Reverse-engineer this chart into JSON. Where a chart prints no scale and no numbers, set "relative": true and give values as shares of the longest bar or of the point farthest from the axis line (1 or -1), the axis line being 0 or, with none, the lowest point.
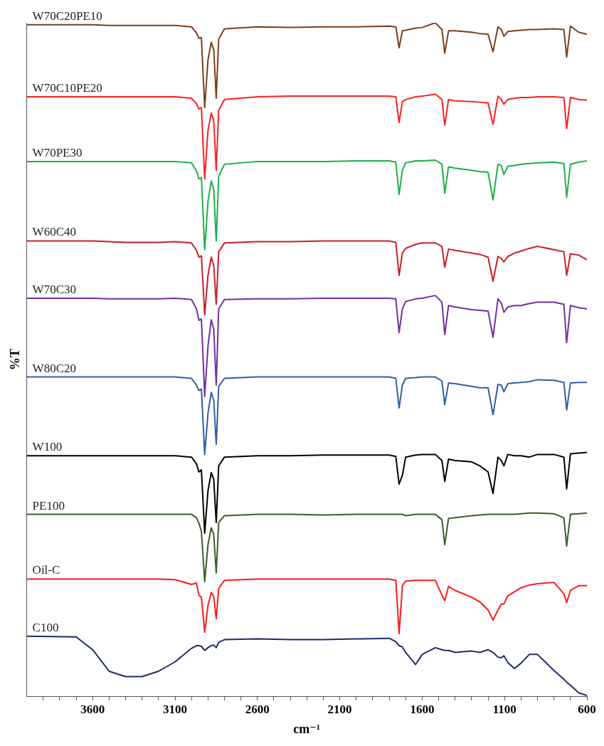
{
  "chart_data": {
    "type": "line",
    "xlabel": "cm⁻¹",
    "ylabel": "%T",
    "relative": true,
    "grid": false,
    "legend": false,
    "marker": "none",
    "line_style": "solid",
    "xlim": [
      4000,
      600
    ],
    "xticks": [
      {
        "value": 3900,
        "label": null
      },
      {
        "value": 3800,
        "label": null
      },
      {
        "value": 3700,
        "label": null
      },
      3600,
      {
        "value": 3500,
        "label": null
      },
      {
        "value": 3400,
        "label": null
      },
      {
        "value": 3300,
        "label": null
      },
      {
        "value": 3200,
        "label": null
      },
      3100,
      {
        "value": 3000,
        "label": null
      },
      {
        "value": 2900,
        "label": null
      },
      {
        "value": 2800,
        "label": null
      },
      {
        "value": 2700,
        "label": null
      },
      2600,
      {
        "value": 2500,
        "label": null
      },
      {
        "value": 2400,
        "label": null
      },
      {
        "value": 2300,
        "label": null
      },
      {
        "value": 2200,
        "label": null
      },
      2100,
      {
        "value": 2000,
        "label": null
      },
      {
        "value": 1900,
        "label": null
      },
      {
        "value": 1800,
        "label": null
      },
      {
        "value": 1700,
        "label": null
      },
      1600,
      {
        "value": 1500,
        "label": null
      },
      {
        "value": 1400,
        "label": null
      },
      {
        "value": 1300,
        "label": null
      },
      {
        "value": 1200,
        "label": null
      },
      1100,
      {
        "value": 1000,
        "label": null
      },
      {
        "value": 900,
        "label": null
      },
      {
        "value": 800,
        "label": null
      },
      {
        "value": 700,
        "label": null
      },
      600
    ],
    "x": [
      4000,
      3700,
      3600,
      3500,
      3400,
      3300,
      3200,
      3100,
      3000,
      2970,
      2955,
      2940,
      2920,
      2900,
      2880,
      2865,
      2850,
      2835,
      2800,
      2600,
      2400,
      2200,
      2000,
      1800,
      1760,
      1740,
      1720,
      1700,
      1640,
      1600,
      1520,
      1480,
      1463,
      1440,
      1400,
      1300,
      1250,
      1200,
      1170,
      1140,
      1120,
      1104,
      1080,
      1040,
      1000,
      950,
      900,
      800,
      740,
      723,
      700,
      650,
      600
    ],
    "series": [
      {
        "name": "W70C20PE10",
        "color": "#7b3f1a",
        "values": [
          0.997,
          0.997,
          0.997,
          0.996,
          0.996,
          0.996,
          0.996,
          0.996,
          0.994,
          0.985,
          0.977,
          0.978,
          0.874,
          0.945,
          0.971,
          0.96,
          0.888,
          0.976,
          0.991,
          0.994,
          0.993,
          0.994,
          0.994,
          0.995,
          0.994,
          0.963,
          0.988,
          0.989,
          0.992,
          0.993,
          1.0,
          0.99,
          0.955,
          0.988,
          0.988,
          0.986,
          0.984,
          0.983,
          0.957,
          0.994,
          0.99,
          0.98,
          0.987,
          0.988,
          0.989,
          0.99,
          0.99,
          0.991,
          0.99,
          0.949,
          0.995,
          0.986,
          0.983
        ]
      },
      {
        "name": "W70C10PE20",
        "color": "#ff2020",
        "values": [
          0.89,
          0.89,
          0.89,
          0.89,
          0.89,
          0.89,
          0.89,
          0.89,
          0.888,
          0.88,
          0.872,
          0.874,
          0.768,
          0.84,
          0.866,
          0.855,
          0.781,
          0.87,
          0.886,
          0.89,
          0.891,
          0.891,
          0.891,
          0.891,
          0.89,
          0.852,
          0.883,
          0.886,
          0.89,
          0.891,
          0.894,
          0.886,
          0.848,
          0.886,
          0.884,
          0.883,
          0.882,
          0.881,
          0.849,
          0.891,
          0.886,
          0.879,
          0.886,
          0.888,
          0.889,
          0.889,
          0.89,
          0.89,
          0.889,
          0.843,
          0.889,
          0.886,
          0.885
        ]
      },
      {
        "name": "W70PE30",
        "color": "#1db04b",
        "values": [
          0.794,
          0.794,
          0.794,
          0.794,
          0.794,
          0.794,
          0.794,
          0.794,
          0.792,
          0.78,
          0.768,
          0.77,
          0.663,
          0.735,
          0.765,
          0.752,
          0.676,
          0.772,
          0.79,
          0.794,
          0.794,
          0.794,
          0.795,
          0.795,
          0.793,
          0.745,
          0.781,
          0.792,
          0.795,
          0.795,
          0.796,
          0.79,
          0.747,
          0.786,
          0.784,
          0.781,
          0.779,
          0.778,
          0.737,
          0.79,
          0.788,
          0.775,
          0.787,
          0.788,
          0.79,
          0.791,
          0.792,
          0.793,
          0.791,
          0.741,
          0.79,
          0.793,
          0.795
        ]
      },
      {
        "name": "W60C40",
        "color": "#c8202a",
        "values": [
          0.676,
          0.676,
          0.676,
          0.675,
          0.674,
          0.674,
          0.674,
          0.675,
          0.673,
          0.662,
          0.652,
          0.654,
          0.566,
          0.625,
          0.652,
          0.64,
          0.582,
          0.66,
          0.673,
          0.675,
          0.675,
          0.676,
          0.676,
          0.676,
          0.674,
          0.625,
          0.658,
          0.665,
          0.671,
          0.673,
          0.673,
          0.668,
          0.637,
          0.664,
          0.662,
          0.658,
          0.656,
          0.652,
          0.616,
          0.653,
          0.65,
          0.645,
          0.653,
          0.658,
          0.661,
          0.665,
          0.668,
          0.663,
          0.66,
          0.625,
          0.657,
          0.655,
          0.648
        ]
      },
      {
        "name": "W70C30",
        "color": "#7030a0",
        "values": [
          0.591,
          0.591,
          0.591,
          0.59,
          0.59,
          0.59,
          0.59,
          0.591,
          0.589,
          0.575,
          0.558,
          0.56,
          0.445,
          0.52,
          0.559,
          0.545,
          0.462,
          0.575,
          0.589,
          0.59,
          0.59,
          0.591,
          0.591,
          0.591,
          0.59,
          0.54,
          0.575,
          0.586,
          0.59,
          0.591,
          0.595,
          0.585,
          0.537,
          0.58,
          0.578,
          0.574,
          0.573,
          0.572,
          0.533,
          0.59,
          0.584,
          0.57,
          0.578,
          0.58,
          0.58,
          0.583,
          0.585,
          0.585,
          0.582,
          0.525,
          0.58,
          0.577,
          0.575
        ]
      },
      {
        "name": "W80C20",
        "color": "#2e5ea8",
        "values": [
          0.474,
          0.474,
          0.474,
          0.474,
          0.474,
          0.474,
          0.474,
          0.474,
          0.472,
          0.462,
          0.454,
          0.456,
          0.359,
          0.42,
          0.451,
          0.44,
          0.374,
          0.46,
          0.472,
          0.474,
          0.474,
          0.474,
          0.474,
          0.474,
          0.472,
          0.428,
          0.462,
          0.472,
          0.473,
          0.474,
          0.474,
          0.468,
          0.433,
          0.465,
          0.464,
          0.46,
          0.458,
          0.458,
          0.418,
          0.463,
          0.462,
          0.452,
          0.464,
          0.465,
          0.466,
          0.467,
          0.47,
          0.469,
          0.466,
          0.425,
          0.465,
          0.466,
          0.466
        ]
      },
      {
        "name": "W100",
        "color": "#000000",
        "values": [
          0.357,
          0.357,
          0.357,
          0.357,
          0.357,
          0.357,
          0.357,
          0.357,
          0.355,
          0.345,
          0.333,
          0.336,
          0.242,
          0.305,
          0.332,
          0.322,
          0.258,
          0.342,
          0.355,
          0.357,
          0.357,
          0.358,
          0.358,
          0.358,
          0.356,
          0.315,
          0.328,
          0.355,
          0.358,
          0.359,
          0.359,
          0.35,
          0.319,
          0.352,
          0.35,
          0.348,
          0.342,
          0.333,
          0.301,
          0.355,
          0.35,
          0.342,
          0.359,
          0.357,
          0.357,
          0.355,
          0.359,
          0.359,
          0.355,
          0.308,
          0.36,
          0.361,
          0.362
        ]
      },
      {
        "name": "PE100",
        "color": "#3b5e2b",
        "values": [
          0.27,
          0.27,
          0.27,
          0.27,
          0.27,
          0.27,
          0.27,
          0.27,
          0.27,
          0.265,
          0.257,
          0.245,
          0.17,
          0.225,
          0.25,
          0.24,
          0.183,
          0.258,
          0.268,
          0.27,
          0.27,
          0.269,
          0.27,
          0.27,
          0.27,
          0.27,
          0.27,
          0.268,
          0.27,
          0.27,
          0.27,
          0.262,
          0.225,
          0.264,
          0.265,
          0.268,
          0.269,
          0.27,
          0.27,
          0.27,
          0.27,
          0.27,
          0.27,
          0.27,
          0.271,
          0.272,
          0.272,
          0.271,
          0.265,
          0.223,
          0.27,
          0.271,
          0.272
        ]
      },
      {
        "name": "Oil-C",
        "color": "#ff1a1a",
        "values": [
          0.174,
          0.174,
          0.174,
          0.174,
          0.174,
          0.174,
          0.174,
          0.173,
          0.166,
          0.168,
          0.15,
          0.147,
          0.095,
          0.135,
          0.154,
          0.148,
          0.115,
          0.16,
          0.172,
          0.174,
          0.174,
          0.174,
          0.174,
          0.174,
          0.172,
          0.093,
          0.164,
          0.171,
          0.172,
          0.172,
          0.172,
          0.15,
          0.142,
          0.163,
          0.157,
          0.147,
          0.14,
          0.128,
          0.113,
          0.128,
          0.137,
          0.137,
          0.149,
          0.155,
          0.161,
          0.165,
          0.167,
          0.169,
          0.152,
          0.139,
          0.157,
          0.164,
          0.164
        ]
      },
      {
        "name": "C100",
        "color": "#1f2b6b",
        "values": [
          0.089,
          0.088,
          0.069,
          0.037,
          0.029,
          0.029,
          0.037,
          0.051,
          0.071,
          0.075,
          0.075,
          0.074,
          0.068,
          0.072,
          0.075,
          0.076,
          0.072,
          0.08,
          0.084,
          0.085,
          0.084,
          0.084,
          0.085,
          0.086,
          0.081,
          0.075,
          0.073,
          0.065,
          0.047,
          0.062,
          0.072,
          0.069,
          0.068,
          0.068,
          0.065,
          0.067,
          0.065,
          0.069,
          0.065,
          0.058,
          0.057,
          0.06,
          0.05,
          0.041,
          0.049,
          0.062,
          0.062,
          0.038,
          0.025,
          0.021,
          0.016,
          0.005,
          0.001
        ]
      }
    ]
  }
}
